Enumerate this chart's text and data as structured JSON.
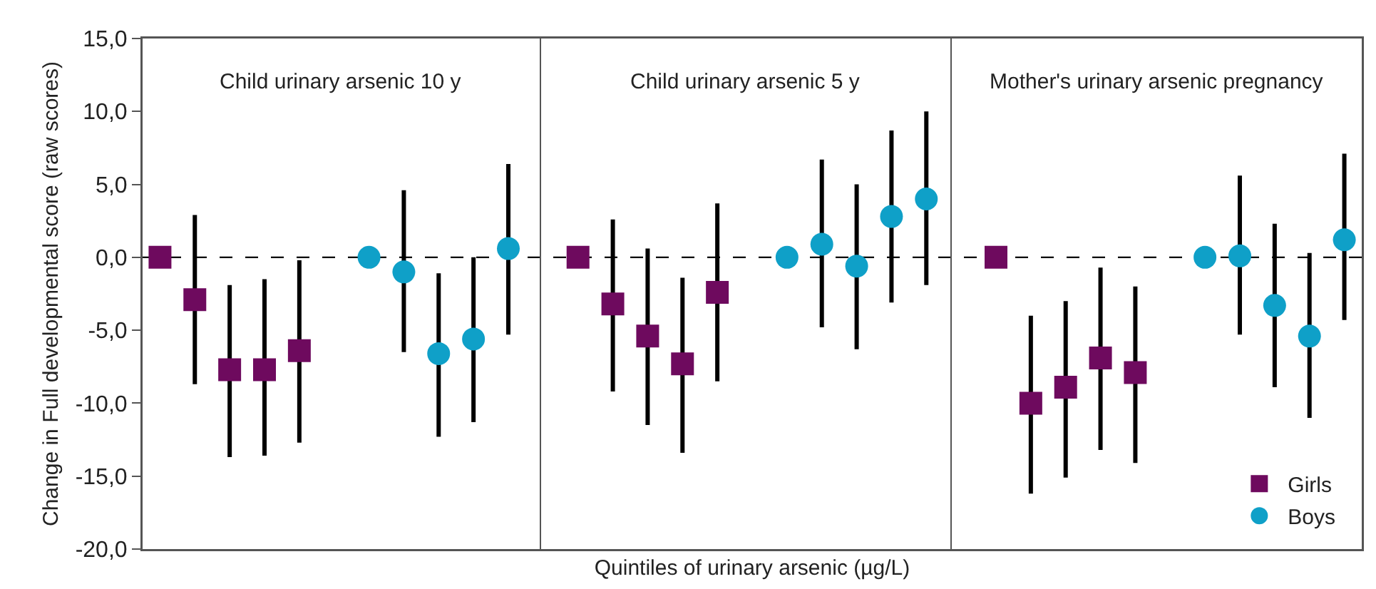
{
  "chart_data": {
    "type": "scatter",
    "xlabel": "Quintiles of urinary arsenic (µg/L)",
    "ylabel": "Change in Full developmental score (raw scores)",
    "annotations": [
      "Child urinary arsenic 10 y",
      "Child urinary arsenic 5 y",
      "Mother's urinary arsenic pregnancy"
    ],
    "categories": [
      null,
      null,
      null,
      null,
      null,
      null,
      null,
      null,
      null,
      null,
      null,
      null,
      null,
      null,
      null,
      null,
      null,
      null,
      null,
      null,
      null,
      null,
      null,
      null,
      null,
      null,
      null,
      null,
      null,
      null,
      null,
      null,
      null,
      null,
      null
    ],
    "ylim": [
      -20,
      15
    ],
    "yticks": [
      {
        "value": -20,
        "label": "-20,0"
      },
      {
        "value": -15,
        "label": "-15,0"
      },
      {
        "value": -10,
        "label": "-10,0"
      },
      {
        "value": -5,
        "label": "-5,0"
      },
      {
        "value": 0,
        "label": "0,0"
      },
      {
        "value": 5,
        "label": "5,0"
      },
      {
        "value": 10,
        "label": "10,0"
      },
      {
        "value": 15,
        "label": "15,0"
      }
    ],
    "tick_labels": "y",
    "grid": false,
    "legend": "bottom right",
    "ref_lines": [
      {
        "axis": "y",
        "value": 0,
        "line_style": "dashed",
        "color": "#000000"
      }
    ],
    "series": [
      {
        "name": "Girls",
        "color": "#6e0a5e",
        "marker": "square",
        "values": [
          0,
          -2.9,
          -7.7,
          -7.7,
          -6.4,
          null,
          null,
          null,
          null,
          null,
          null,
          null,
          0,
          -3.2,
          -5.4,
          -7.3,
          -2.4,
          null,
          null,
          null,
          null,
          null,
          null,
          null,
          0,
          -10.0,
          -8.9,
          -6.9,
          -7.9,
          null,
          null,
          null,
          null,
          null,
          null
        ],
        "errors": [
          null,
          [
            -8.7,
            2.9
          ],
          [
            -13.7,
            -1.9
          ],
          [
            -13.6,
            -1.5
          ],
          [
            -12.7,
            -0.2
          ],
          null,
          null,
          null,
          null,
          null,
          null,
          null,
          null,
          [
            -9.2,
            2.6
          ],
          [
            -11.5,
            0.6
          ],
          [
            -13.4,
            -1.4
          ],
          [
            -8.5,
            3.7
          ],
          null,
          null,
          null,
          null,
          null,
          null,
          null,
          null,
          [
            -16.2,
            -4.0
          ],
          [
            -15.1,
            -3.0
          ],
          [
            -13.2,
            -0.7
          ],
          [
            -14.1,
            -2.0
          ],
          null,
          null,
          null,
          null,
          null,
          null
        ]
      },
      {
        "name": "Boys",
        "color": "#0fa0c8",
        "marker": "circle",
        "values": [
          null,
          null,
          null,
          null,
          null,
          null,
          0,
          -1.0,
          -6.6,
          -5.6,
          0.6,
          null,
          null,
          null,
          null,
          null,
          null,
          null,
          0,
          0.9,
          -0.6,
          2.8,
          4.0,
          null,
          null,
          null,
          null,
          null,
          null,
          null,
          0,
          0.1,
          -3.3,
          -5.4,
          1.2
        ],
        "errors": [
          null,
          null,
          null,
          null,
          null,
          null,
          null,
          [
            -6.5,
            4.6
          ],
          [
            -12.3,
            -1.1
          ],
          [
            -11.3,
            0
          ],
          [
            -5.3,
            6.4
          ],
          null,
          null,
          null,
          null,
          null,
          null,
          null,
          null,
          [
            -4.8,
            6.7
          ],
          [
            -6.3,
            5.0
          ],
          [
            -3.1,
            8.7
          ],
          [
            -1.9,
            10.0
          ],
          null,
          null,
          null,
          null,
          null,
          null,
          null,
          null,
          [
            -5.3,
            5.6
          ],
          [
            -8.9,
            2.3
          ],
          [
            -11.0,
            0.3
          ],
          [
            -4.3,
            7.1
          ]
        ]
      }
    ]
  }
}
